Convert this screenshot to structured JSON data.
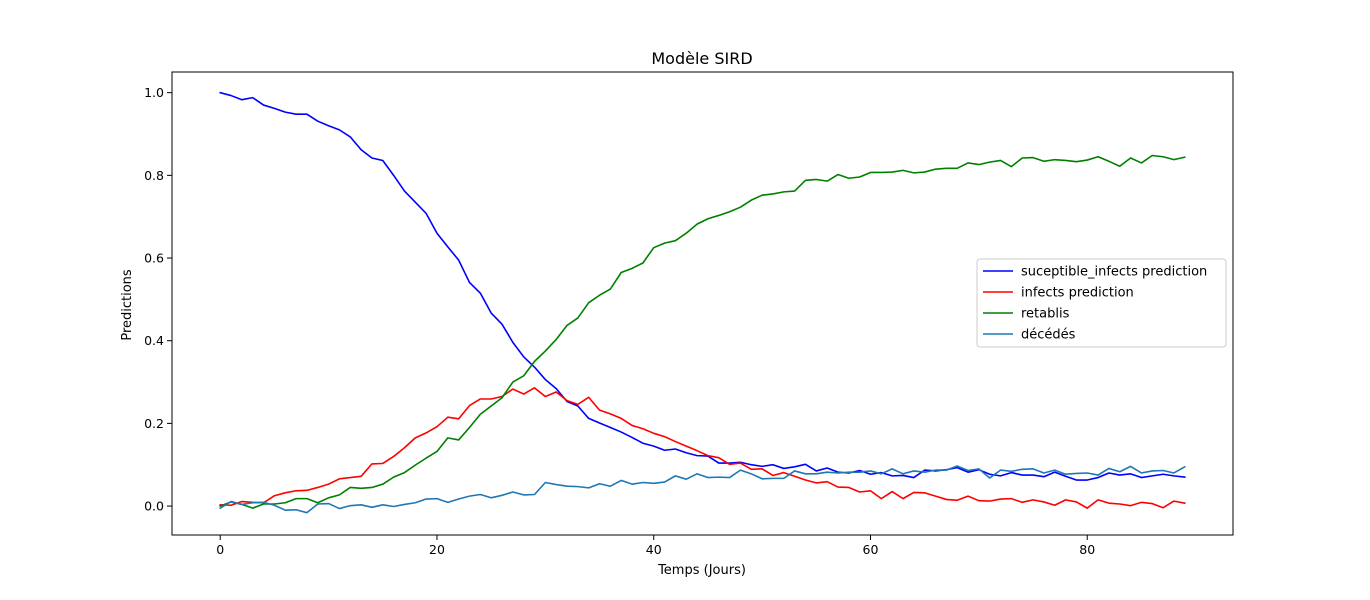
{
  "chart_data": {
    "type": "line",
    "title": "Modèle SIRD",
    "xlabel": "Temps (Jours)",
    "ylabel": "Predictions",
    "xlim": [
      -4.45,
      93.45
    ],
    "ylim": [
      -0.07,
      1.05
    ],
    "xticks": [
      0,
      20,
      40,
      60,
      80
    ],
    "yticks": [
      0.0,
      0.2,
      0.4,
      0.6,
      0.8,
      1.0
    ],
    "xtick_labels": [
      "0",
      "20",
      "40",
      "60",
      "80"
    ],
    "ytick_labels": [
      "0.0",
      "0.2",
      "0.4",
      "0.6",
      "0.8",
      "1.0"
    ],
    "grid": false,
    "legend_position": "center-right",
    "x": [
      0,
      1,
      2,
      3,
      4,
      5,
      6,
      7,
      8,
      9,
      10,
      11,
      12,
      13,
      14,
      15,
      16,
      17,
      18,
      19,
      20,
      21,
      22,
      23,
      24,
      25,
      26,
      27,
      28,
      29,
      30,
      31,
      32,
      33,
      34,
      35,
      36,
      37,
      38,
      39,
      40,
      41,
      42,
      43,
      44,
      45,
      46,
      47,
      48,
      49,
      50,
      51,
      52,
      53,
      54,
      55,
      56,
      57,
      58,
      59,
      60,
      61,
      62,
      63,
      64,
      65,
      66,
      67,
      68,
      69,
      70,
      71,
      72,
      73,
      74,
      75,
      76,
      77,
      78,
      79,
      80,
      81,
      82,
      83,
      84,
      85,
      86,
      87,
      88,
      89
    ],
    "series": [
      {
        "name": "suceptible_infects prediction",
        "color": "#0000ff",
        "values": [
          1.0,
          0.993,
          0.983,
          0.988,
          0.97,
          0.962,
          0.953,
          0.948,
          0.948,
          0.931,
          0.92,
          0.91,
          0.893,
          0.862,
          0.842,
          0.836,
          0.8,
          0.762,
          0.735,
          0.708,
          0.66,
          0.627,
          0.595,
          0.541,
          0.515,
          0.467,
          0.44,
          0.396,
          0.361,
          0.336,
          0.306,
          0.284,
          0.253,
          0.242,
          0.212,
          0.201,
          0.19,
          0.179,
          0.166,
          0.152,
          0.145,
          0.135,
          0.138,
          0.129,
          0.122,
          0.121,
          0.104,
          0.104,
          0.106,
          0.1,
          0.096,
          0.1,
          0.091,
          0.095,
          0.101,
          0.085,
          0.092,
          0.082,
          0.08,
          0.086,
          0.077,
          0.081,
          0.073,
          0.074,
          0.069,
          0.087,
          0.085,
          0.088,
          0.093,
          0.082,
          0.088,
          0.077,
          0.073,
          0.081,
          0.075,
          0.075,
          0.071,
          0.082,
          0.072,
          0.063,
          0.063,
          0.069,
          0.08,
          0.075,
          0.078,
          0.069,
          0.073,
          0.077,
          0.073,
          0.07
        ]
      },
      {
        "name": "infects prediction",
        "color": "#ff0000",
        "values": [
          0.003,
          0.002,
          0.011,
          0.009,
          0.008,
          0.025,
          0.032,
          0.037,
          0.038,
          0.045,
          0.053,
          0.066,
          0.069,
          0.072,
          0.102,
          0.103,
          0.12,
          0.141,
          0.165,
          0.177,
          0.192,
          0.215,
          0.211,
          0.243,
          0.259,
          0.259,
          0.265,
          0.283,
          0.271,
          0.286,
          0.265,
          0.276,
          0.255,
          0.246,
          0.263,
          0.232,
          0.223,
          0.212,
          0.195,
          0.187,
          0.176,
          0.168,
          0.156,
          0.145,
          0.134,
          0.122,
          0.117,
          0.101,
          0.104,
          0.089,
          0.09,
          0.074,
          0.081,
          0.072,
          0.063,
          0.056,
          0.059,
          0.046,
          0.045,
          0.034,
          0.037,
          0.018,
          0.035,
          0.018,
          0.033,
          0.032,
          0.024,
          0.016,
          0.014,
          0.024,
          0.013,
          0.012,
          0.017,
          0.018,
          0.009,
          0.015,
          0.01,
          0.002,
          0.015,
          0.01,
          -0.005,
          0.015,
          0.007,
          0.005,
          0.001,
          0.009,
          0.006,
          -0.004,
          0.012,
          0.007
        ]
      },
      {
        "name": "retablis",
        "color": "#008000",
        "values": [
          0.0,
          0.01,
          0.004,
          -0.005,
          0.005,
          0.005,
          0.008,
          0.018,
          0.018,
          0.008,
          0.02,
          0.027,
          0.045,
          0.043,
          0.045,
          0.053,
          0.07,
          0.081,
          0.099,
          0.116,
          0.132,
          0.165,
          0.16,
          0.19,
          0.222,
          0.242,
          0.262,
          0.3,
          0.315,
          0.35,
          0.375,
          0.403,
          0.437,
          0.455,
          0.492,
          0.51,
          0.525,
          0.565,
          0.575,
          0.588,
          0.625,
          0.636,
          0.642,
          0.66,
          0.682,
          0.695,
          0.703,
          0.712,
          0.723,
          0.74,
          0.752,
          0.755,
          0.76,
          0.762,
          0.788,
          0.79,
          0.786,
          0.802,
          0.793,
          0.796,
          0.807,
          0.807,
          0.808,
          0.812,
          0.806,
          0.808,
          0.815,
          0.817,
          0.817,
          0.83,
          0.826,
          0.832,
          0.836,
          0.821,
          0.842,
          0.843,
          0.834,
          0.838,
          0.836,
          0.833,
          0.837,
          0.845,
          0.834,
          0.822,
          0.842,
          0.83,
          0.848,
          0.845,
          0.838,
          0.844
        ]
      },
      {
        "name": "décédés",
        "color": "#1f77b4",
        "values": [
          -0.005,
          0.011,
          0.004,
          0.008,
          0.009,
          0.002,
          -0.01,
          -0.009,
          -0.016,
          0.005,
          0.006,
          -0.006,
          0.001,
          0.003,
          -0.003,
          0.003,
          -0.001,
          0.004,
          0.008,
          0.017,
          0.018,
          0.009,
          0.017,
          0.024,
          0.028,
          0.02,
          0.026,
          0.034,
          0.027,
          0.028,
          0.057,
          0.052,
          0.048,
          0.047,
          0.044,
          0.054,
          0.048,
          0.062,
          0.053,
          0.057,
          0.055,
          0.058,
          0.073,
          0.065,
          0.078,
          0.069,
          0.07,
          0.069,
          0.087,
          0.078,
          0.066,
          0.067,
          0.067,
          0.085,
          0.078,
          0.078,
          0.082,
          0.08,
          0.082,
          0.082,
          0.085,
          0.078,
          0.09,
          0.078,
          0.085,
          0.082,
          0.087,
          0.087,
          0.097,
          0.086,
          0.09,
          0.068,
          0.087,
          0.084,
          0.089,
          0.09,
          0.08,
          0.087,
          0.077,
          0.079,
          0.08,
          0.075,
          0.091,
          0.083,
          0.096,
          0.08,
          0.085,
          0.086,
          0.08,
          0.095
        ]
      }
    ]
  }
}
